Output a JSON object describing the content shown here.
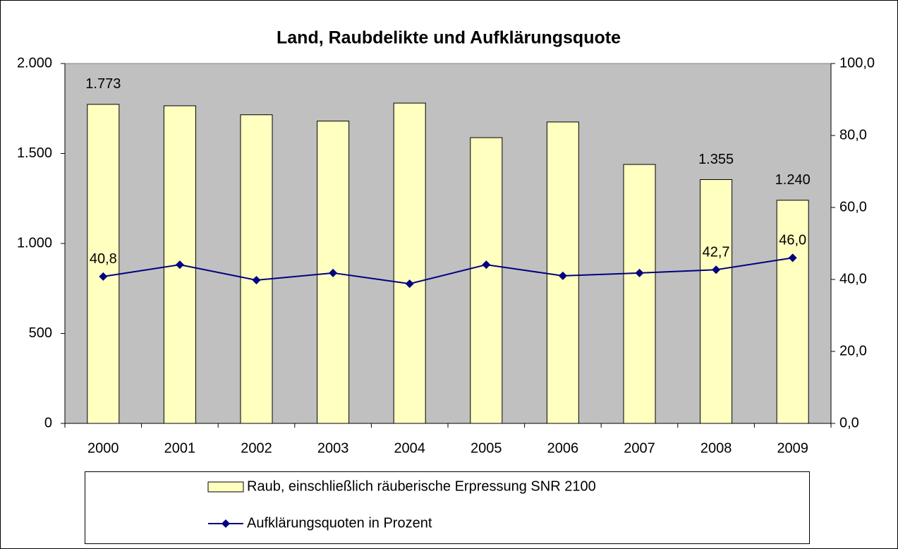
{
  "chart_data": {
    "type": "bar_line",
    "title": "Land, Raubdelikte und Aufklärungsquote",
    "categories": [
      "2000",
      "2001",
      "2002",
      "2003",
      "2004",
      "2005",
      "2006",
      "2007",
      "2008",
      "2009"
    ],
    "series": [
      {
        "name": "Raub, einschließlich räuberische Erpressung SNR 2100",
        "type": "bar",
        "color": "#ffffc0",
        "values": [
          1773,
          1765,
          1715,
          1680,
          1780,
          1588,
          1675,
          1439,
          1355,
          1240
        ],
        "value_labels": [
          "1.773",
          null,
          null,
          null,
          null,
          null,
          null,
          null,
          "1.355",
          "1.240"
        ]
      },
      {
        "name": "Aufklärungsquoten in Prozent",
        "type": "line",
        "axis": "y2",
        "color": "#000080",
        "values": [
          40.8,
          44.1,
          39.8,
          41.8,
          38.8,
          44.1,
          41.0,
          41.8,
          42.7,
          46.0
        ],
        "value_labels": [
          "40,8",
          null,
          null,
          null,
          null,
          null,
          null,
          null,
          "42,7",
          "46,0"
        ]
      }
    ],
    "ylim": [
      0,
      2000
    ],
    "yticks": [
      0,
      500,
      {
        "value": 1000,
        "label": "1.000"
      },
      {
        "value": 1500,
        "label": "1.500"
      },
      {
        "value": 2000,
        "label": "2.000"
      }
    ],
    "y2lim": [
      0,
      100
    ],
    "y2ticks": [
      {
        "value": 0,
        "label": "0,0"
      },
      {
        "value": 20,
        "label": "20,0"
      },
      {
        "value": 40,
        "label": "40,0"
      },
      {
        "value": 60,
        "label": "60,0"
      },
      {
        "value": 80,
        "label": "80,0"
      },
      {
        "value": 100,
        "label": "100,0"
      }
    ],
    "plot_background": "#c0c0c0"
  }
}
